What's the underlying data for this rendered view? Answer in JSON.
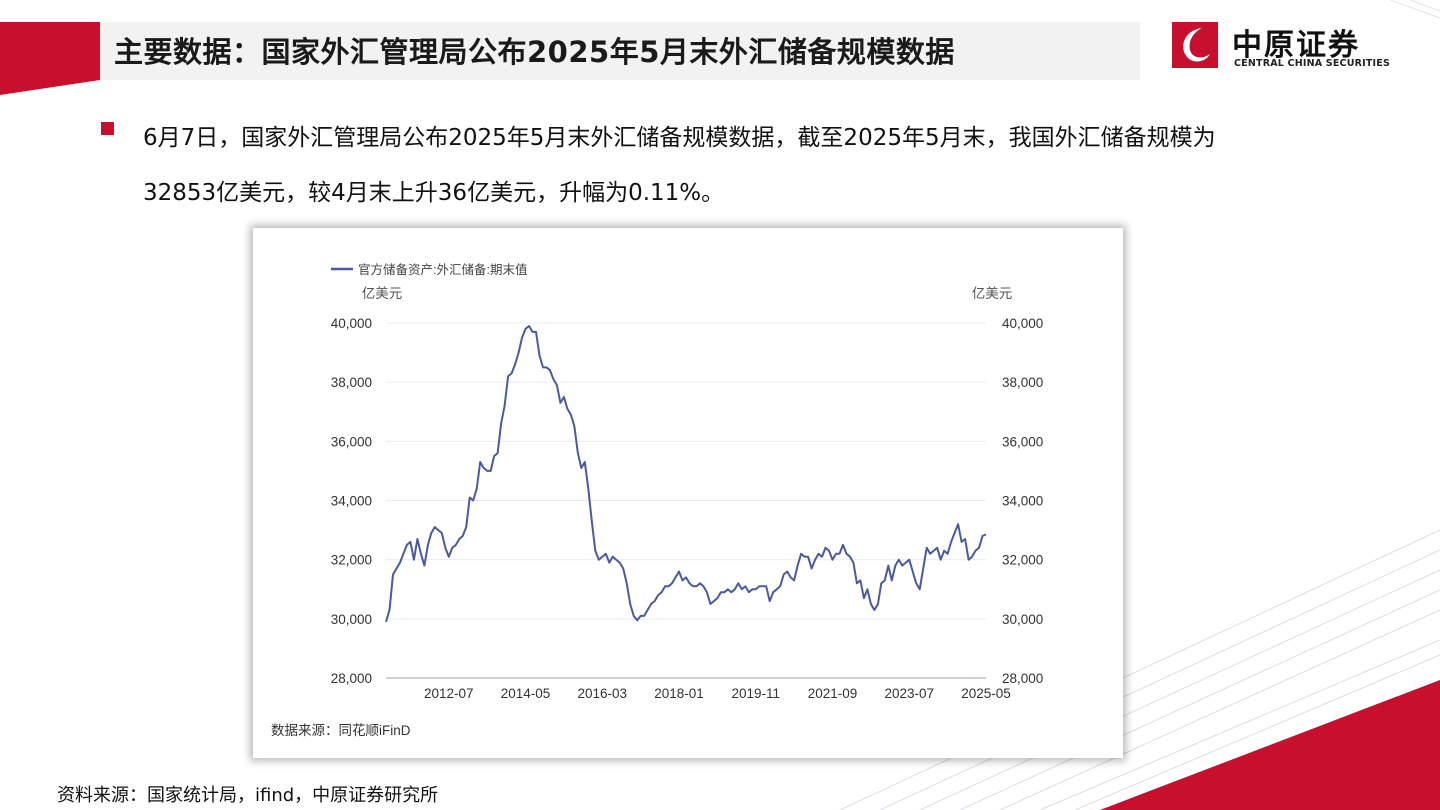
{
  "header": {
    "title": "主要数据：国家外汇管理局公布2025年5月末外汇储备规模数据",
    "logo_cn": "中原证券",
    "logo_en": "CENTRAL CHINA SECURITIES"
  },
  "colors": {
    "brand_red": "#c8102e",
    "line": "#4a5a9c",
    "grid": "#e8ecf2"
  },
  "body": {
    "line1": "6月7日，国家外汇管理局公布2025年5月末外汇储备规模数据，截至2025年5月末，我国外汇储备规模为",
    "line2": "32853亿美元，较4月末上升36亿美元，升幅为0.11%。"
  },
  "chart_data": {
    "type": "line",
    "legend": "官方储备资产:外汇储备:期末值",
    "legend_position": "top-left",
    "ylabel_left": "亿美元",
    "ylabel_right": "亿美元",
    "ylim": [
      28000,
      40000
    ],
    "yticks": [
      28000,
      30000,
      32000,
      34000,
      36000,
      38000,
      40000
    ],
    "ytick_labels": [
      "28,000",
      "30,000",
      "32,000",
      "34,000",
      "36,000",
      "38,000",
      "40,000"
    ],
    "xlim": [
      "2011-01",
      "2025-05"
    ],
    "xtick_labels": [
      "2012-07",
      "2014-05",
      "2016-03",
      "2018-01",
      "2019-11",
      "2021-09",
      "2023-07",
      "2025-05"
    ],
    "grid": true,
    "source": "数据来源：同花顺iFinD",
    "series": [
      {
        "values": [
          [
            "2011-01",
            29900
          ],
          [
            "2011-02",
            30300
          ],
          [
            "2011-03",
            31500
          ],
          [
            "2011-04",
            31700
          ],
          [
            "2011-05",
            31900
          ],
          [
            "2011-06",
            32200
          ],
          [
            "2011-07",
            32500
          ],
          [
            "2011-08",
            32600
          ],
          [
            "2011-09",
            32000
          ],
          [
            "2011-10",
            32700
          ],
          [
            "2011-11",
            32200
          ],
          [
            "2011-12",
            31800
          ],
          [
            "2012-01",
            32500
          ],
          [
            "2012-02",
            32900
          ],
          [
            "2012-03",
            33100
          ],
          [
            "2012-04",
            33000
          ],
          [
            "2012-05",
            32900
          ],
          [
            "2012-06",
            32400
          ],
          [
            "2012-07",
            32100
          ],
          [
            "2012-08",
            32400
          ],
          [
            "2012-09",
            32500
          ],
          [
            "2012-10",
            32700
          ],
          [
            "2012-11",
            32800
          ],
          [
            "2012-12",
            33100
          ],
          [
            "2013-01",
            34100
          ],
          [
            "2013-02",
            34000
          ],
          [
            "2013-03",
            34400
          ],
          [
            "2013-04",
            35300
          ],
          [
            "2013-05",
            35100
          ],
          [
            "2013-06",
            35000
          ],
          [
            "2013-07",
            35000
          ],
          [
            "2013-08",
            35500
          ],
          [
            "2013-09",
            35600
          ],
          [
            "2013-10",
            36600
          ],
          [
            "2013-11",
            37200
          ],
          [
            "2013-12",
            38200
          ],
          [
            "2014-01",
            38300
          ],
          [
            "2014-02",
            38600
          ],
          [
            "2014-03",
            39000
          ],
          [
            "2014-04",
            39500
          ],
          [
            "2014-05",
            39800
          ],
          [
            "2014-06",
            39900
          ],
          [
            "2014-07",
            39700
          ],
          [
            "2014-08",
            39700
          ],
          [
            "2014-09",
            38900
          ],
          [
            "2014-10",
            38500
          ],
          [
            "2014-11",
            38500
          ],
          [
            "2014-12",
            38400
          ],
          [
            "2015-01",
            38100
          ],
          [
            "2015-02",
            37900
          ],
          [
            "2015-03",
            37300
          ],
          [
            "2015-04",
            37500
          ],
          [
            "2015-05",
            37100
          ],
          [
            "2015-06",
            36900
          ],
          [
            "2015-07",
            36500
          ],
          [
            "2015-08",
            35600
          ],
          [
            "2015-09",
            35100
          ],
          [
            "2015-10",
            35300
          ],
          [
            "2015-11",
            34400
          ],
          [
            "2015-12",
            33300
          ],
          [
            "2016-01",
            32300
          ],
          [
            "2016-02",
            32000
          ],
          [
            "2016-03",
            32100
          ],
          [
            "2016-04",
            32200
          ],
          [
            "2016-05",
            31900
          ],
          [
            "2016-06",
            32100
          ],
          [
            "2016-07",
            32000
          ],
          [
            "2016-08",
            31900
          ],
          [
            "2016-09",
            31700
          ],
          [
            "2016-10",
            31200
          ],
          [
            "2016-11",
            30500
          ],
          [
            "2016-12",
            30100
          ],
          [
            "2017-01",
            29950
          ],
          [
            "2017-02",
            30100
          ],
          [
            "2017-03",
            30100
          ],
          [
            "2017-04",
            30300
          ],
          [
            "2017-05",
            30500
          ],
          [
            "2017-06",
            30600
          ],
          [
            "2017-07",
            30800
          ],
          [
            "2017-08",
            30900
          ],
          [
            "2017-09",
            31100
          ],
          [
            "2017-10",
            31100
          ],
          [
            "2017-11",
            31200
          ],
          [
            "2017-12",
            31400
          ],
          [
            "2018-01",
            31600
          ],
          [
            "2018-02",
            31300
          ],
          [
            "2018-03",
            31400
          ],
          [
            "2018-04",
            31200
          ],
          [
            "2018-05",
            31100
          ],
          [
            "2018-06",
            31100
          ],
          [
            "2018-07",
            31200
          ],
          [
            "2018-08",
            31100
          ],
          [
            "2018-09",
            30900
          ],
          [
            "2018-10",
            30500
          ],
          [
            "2018-11",
            30600
          ],
          [
            "2018-12",
            30700
          ],
          [
            "2019-01",
            30900
          ],
          [
            "2019-02",
            30900
          ],
          [
            "2019-03",
            31000
          ],
          [
            "2019-04",
            30900
          ],
          [
            "2019-05",
            31000
          ],
          [
            "2019-06",
            31200
          ],
          [
            "2019-07",
            31000
          ],
          [
            "2019-08",
            31100
          ],
          [
            "2019-09",
            30900
          ],
          [
            "2019-10",
            31000
          ],
          [
            "2019-11",
            31000
          ],
          [
            "2019-12",
            31100
          ],
          [
            "2020-01",
            31100
          ],
          [
            "2020-02",
            31100
          ],
          [
            "2020-03",
            30600
          ],
          [
            "2020-04",
            30900
          ],
          [
            "2020-05",
            31000
          ],
          [
            "2020-06",
            31100
          ],
          [
            "2020-07",
            31500
          ],
          [
            "2020-08",
            31600
          ],
          [
            "2020-09",
            31400
          ],
          [
            "2020-10",
            31300
          ],
          [
            "2020-11",
            31800
          ],
          [
            "2020-12",
            32200
          ],
          [
            "2021-01",
            32100
          ],
          [
            "2021-02",
            32100
          ],
          [
            "2021-03",
            31700
          ],
          [
            "2021-04",
            32000
          ],
          [
            "2021-05",
            32200
          ],
          [
            "2021-06",
            32100
          ],
          [
            "2021-07",
            32400
          ],
          [
            "2021-08",
            32300
          ],
          [
            "2021-09",
            32000
          ],
          [
            "2021-10",
            32200
          ],
          [
            "2021-11",
            32200
          ],
          [
            "2021-12",
            32500
          ],
          [
            "2022-01",
            32200
          ],
          [
            "2022-02",
            32100
          ],
          [
            "2022-03",
            31900
          ],
          [
            "2022-04",
            31200
          ],
          [
            "2022-05",
            31300
          ],
          [
            "2022-06",
            30700
          ],
          [
            "2022-07",
            31000
          ],
          [
            "2022-08",
            30500
          ],
          [
            "2022-09",
            30300
          ],
          [
            "2022-10",
            30500
          ],
          [
            "2022-11",
            31200
          ],
          [
            "2022-12",
            31300
          ],
          [
            "2023-01",
            31800
          ],
          [
            "2023-02",
            31300
          ],
          [
            "2023-03",
            31800
          ],
          [
            "2023-04",
            32000
          ],
          [
            "2023-05",
            31800
          ],
          [
            "2023-06",
            31900
          ],
          [
            "2023-07",
            32000
          ],
          [
            "2023-08",
            31600
          ],
          [
            "2023-09",
            31200
          ],
          [
            "2023-10",
            31000
          ],
          [
            "2023-11",
            31700
          ],
          [
            "2023-12",
            32400
          ],
          [
            "2024-01",
            32200
          ],
          [
            "2024-02",
            32300
          ],
          [
            "2024-03",
            32400
          ],
          [
            "2024-04",
            32000
          ],
          [
            "2024-05",
            32300
          ],
          [
            "2024-06",
            32200
          ],
          [
            "2024-07",
            32600
          ],
          [
            "2024-08",
            32900
          ],
          [
            "2024-09",
            33200
          ],
          [
            "2024-10",
            32600
          ],
          [
            "2024-11",
            32700
          ],
          [
            "2024-12",
            32000
          ],
          [
            "2025-01",
            32100
          ],
          [
            "2025-02",
            32300
          ],
          [
            "2025-03",
            32400
          ],
          [
            "2025-04",
            32800
          ],
          [
            "2025-05",
            32853
          ]
        ]
      }
    ]
  },
  "footer": {
    "source": "资料来源：国家统计局，ifind，中原证券研究所"
  }
}
